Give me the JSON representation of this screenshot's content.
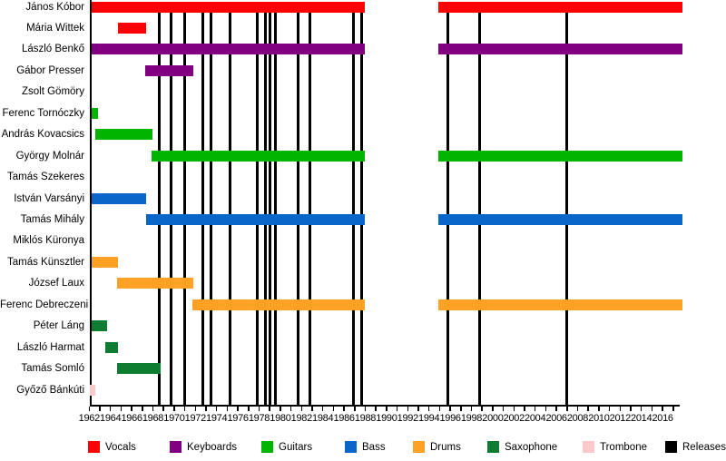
{
  "chart_data": {
    "type": "bar",
    "subtype": "horizontal-timeline-gantt",
    "title": "",
    "xlabel": "",
    "ylabel": "",
    "grid": false,
    "legend_position": "bottom",
    "x_axis": {
      "min": 1962,
      "max": 2017.5,
      "minor_tick_every_years": 1,
      "label_every_years": 2,
      "labels": [
        "1962",
        "1964",
        "1966",
        "1968",
        "1970",
        "1972",
        "1974",
        "1976",
        "1978",
        "1980",
        "1982",
        "1984",
        "1986",
        "1988",
        "1990",
        "1992",
        "1994",
        "1996",
        "1998",
        "2000",
        "2002",
        "2004",
        "2006",
        "2008",
        "2010",
        "2012",
        "2014",
        "2016"
      ]
    },
    "members": [
      {
        "name": "János Kóbor",
        "role": "Vocals",
        "segments": [
          [
            1962.2,
            1988.0
          ],
          [
            1994.9,
            2017.9
          ]
        ]
      },
      {
        "name": "Mária Wittek",
        "role": "Vocals",
        "segments": [
          [
            1964.7,
            1967.4
          ]
        ]
      },
      {
        "name": "László Benkő",
        "role": "Keyboards",
        "segments": [
          [
            1962.2,
            1988.0
          ],
          [
            1994.9,
            2017.9
          ]
        ]
      },
      {
        "name": "Gábor Presser",
        "role": "Keyboards",
        "segments": [
          [
            1967.3,
            1971.8
          ]
        ]
      },
      {
        "name": "Zsolt Gömöry",
        "role": "Keyboards",
        "segments": []
      },
      {
        "name": "Ferenc Tornóczky",
        "role": "Guitars",
        "segments": [
          [
            1962.2,
            1962.8
          ]
        ]
      },
      {
        "name": "András Kovacsics",
        "role": "Guitars",
        "segments": [
          [
            1962.6,
            1968.0
          ]
        ]
      },
      {
        "name": "György Molnár",
        "role": "Guitars",
        "segments": [
          [
            1967.9,
            1988.0
          ],
          [
            1994.9,
            2017.9
          ]
        ]
      },
      {
        "name": "Tamás Szekeres",
        "role": "Guitars",
        "segments": []
      },
      {
        "name": "István Varsányi",
        "role": "Bass",
        "segments": [
          [
            1962.2,
            1967.4
          ]
        ]
      },
      {
        "name": "Tamás Mihály",
        "role": "Bass",
        "segments": [
          [
            1967.4,
            1988.0
          ],
          [
            1994.9,
            2017.9
          ]
        ]
      },
      {
        "name": "Miklós Küronya",
        "role": "Bass",
        "segments": []
      },
      {
        "name": "Tamás Künsztler",
        "role": "Drums",
        "segments": [
          [
            1962.2,
            1964.7
          ]
        ]
      },
      {
        "name": "József Laux",
        "role": "Drums",
        "segments": [
          [
            1964.6,
            1971.8
          ]
        ]
      },
      {
        "name": "Ferenc Debreczeni",
        "role": "Drums",
        "segments": [
          [
            1971.7,
            1988.0
          ],
          [
            1994.9,
            2017.9
          ]
        ]
      },
      {
        "name": "Péter Láng",
        "role": "Saxophone",
        "segments": [
          [
            1962.2,
            1963.7
          ]
        ]
      },
      {
        "name": "László Harmat",
        "role": "Saxophone",
        "segments": [
          [
            1963.5,
            1964.7
          ]
        ]
      },
      {
        "name": "Tamás Somló",
        "role": "Saxophone",
        "segments": [
          [
            1964.6,
            1968.7
          ]
        ]
      },
      {
        "name": "Győző Bánkúti",
        "role": "Trombone",
        "segments": [
          [
            1962.1,
            1962.6
          ]
        ]
      }
    ],
    "releases_years": [
      1968.6,
      1969.7,
      1971.0,
      1972.7,
      1973.5,
      1975.3,
      1977.8,
      1978.6,
      1979.0,
      1979.5,
      1981.7,
      1982.8,
      1986.9,
      1987.7,
      1995.8,
      1998.8,
      2007.0
    ],
    "role_colors": {
      "Vocals": "#FF0000",
      "Keyboards": "#800080",
      "Guitars": "#00B400",
      "Bass": "#0A66C8",
      "Drums": "#FFA124",
      "Saxophone": "#0E7D32",
      "Trombone": "#FBC9C9"
    },
    "legend": [
      {
        "label": "Vocals",
        "color": "#FF0000"
      },
      {
        "label": "Keyboards",
        "color": "#800080"
      },
      {
        "label": "Guitars",
        "color": "#00B400"
      },
      {
        "label": "Bass",
        "color": "#0A66C8"
      },
      {
        "label": "Drums",
        "color": "#FFA124"
      },
      {
        "label": "Saxophone",
        "color": "#0E7D32"
      },
      {
        "label": "Trombone",
        "color": "#FBC9C9"
      },
      {
        "label": "Releases",
        "color": "#000000"
      }
    ]
  }
}
